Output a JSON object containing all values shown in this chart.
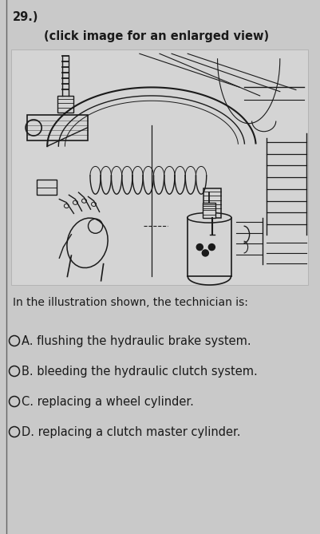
{
  "question_number": "29.)",
  "subtitle": "(click image for an enlarged view)",
  "question_text": "In the illustration shown, the technician is:",
  "choice_A": "OA. flushing the hydraulic brake system.",
  "choice_B": "OB. bleeding the hydraulic clutch system.",
  "choice_C": "OC. replacing a wheel cylinder.",
  "choice_D": "OD. replacing a clutch master cylinder.",
  "bg_color": "#c9c9c9",
  "ill_bg_color": "#d4d4d4",
  "line_color": "#1a1a1a",
  "text_color": "#1a1a1a",
  "border_color": "#666666",
  "qnum_fontsize": 10.5,
  "subtitle_fontsize": 10.5,
  "question_fontsize": 10.0,
  "choice_fontsize": 10.5,
  "fig_width": 4.02,
  "fig_height": 6.69,
  "dpi": 100
}
